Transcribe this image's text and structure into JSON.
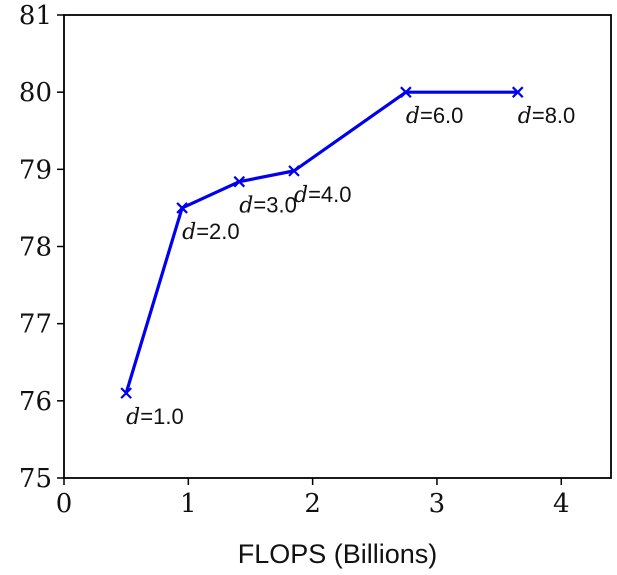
{
  "chart_data": {
    "type": "line",
    "title": "",
    "xlabel": "FLOPS (Billions)",
    "ylabel": "",
    "xlim": [
      0,
      4.4
    ],
    "ylim": [
      75,
      81
    ],
    "xticks": [
      "0",
      "1",
      "2",
      "3",
      "4"
    ],
    "yticks": [
      "75",
      "76",
      "77",
      "78",
      "79",
      "80",
      "81"
    ],
    "grid": false,
    "series": [
      {
        "color": "#0000ee",
        "marker": "x",
        "x": [
          0.5,
          0.95,
          1.41,
          1.85,
          2.75,
          3.65
        ],
        "y": [
          76.1,
          78.5,
          78.84,
          78.98,
          80.0,
          80.0
        ],
        "labels": [
          {
            "var": "d",
            "text": "=1.0"
          },
          {
            "var": "d",
            "text": "=2.0"
          },
          {
            "var": "d",
            "text": "=3.0"
          },
          {
            "var": "d",
            "text": "=4.0"
          },
          {
            "var": "d",
            "text": "=6.0"
          },
          {
            "var": "d",
            "text": "=8.0"
          }
        ]
      }
    ]
  }
}
